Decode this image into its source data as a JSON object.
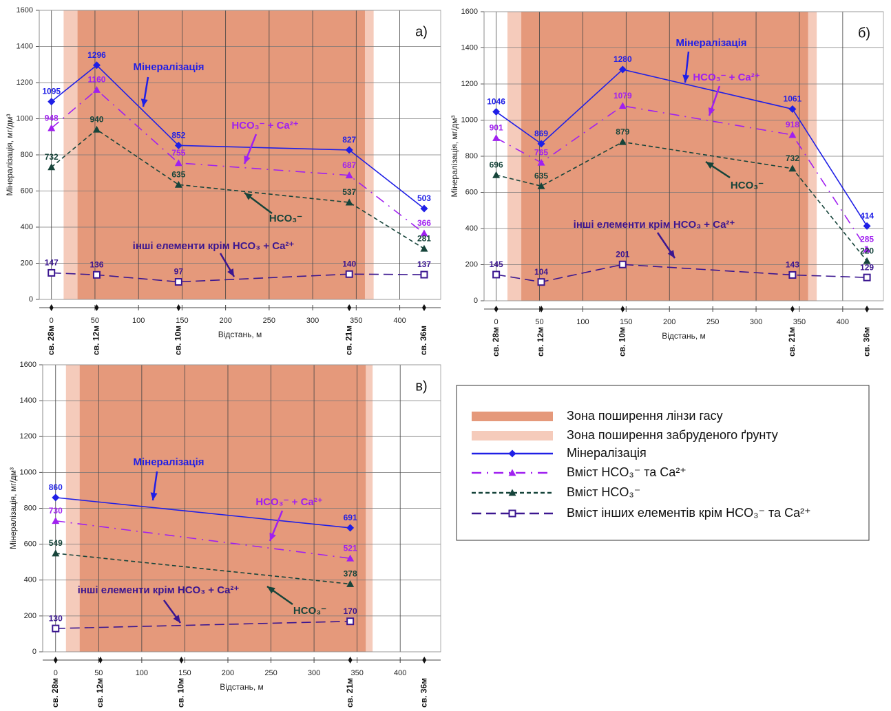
{
  "chart_data": [
    {
      "type": "line",
      "panel_label": "а)",
      "ylabel": "Мінералізація, мг/дм³",
      "xlabel": "Відстань, м",
      "xlim": [
        -14,
        447
      ],
      "ylim": [
        0,
        1600
      ],
      "xticks": [
        0,
        50,
        100,
        150,
        200,
        250,
        300,
        350,
        400
      ],
      "yticks": [
        0,
        200,
        400,
        600,
        800,
        1000,
        1200,
        1400,
        1600
      ],
      "grid": true,
      "zones": [
        {
          "name": "Зона поширення лінзи гасу",
          "color": "#e5997b",
          "range": [
            30,
            360
          ]
        },
        {
          "name": "Зона поширення забруденого ґрунту",
          "color": "#f5cbbb",
          "range": [
            14,
            370
          ]
        }
      ],
      "wells": [
        {
          "x": 0,
          "label": "св. 28м"
        },
        {
          "x": 52,
          "label": "св. 12м"
        },
        {
          "x": 146,
          "label": "св. 10м"
        },
        {
          "x": 342,
          "label": "св. 21м"
        },
        {
          "x": 428,
          "label": "св. 36м"
        }
      ],
      "x": [
        0,
        52,
        146,
        342,
        428
      ],
      "series": [
        {
          "name": "Мінералізація",
          "color": "#1f1fe6",
          "dash": "solid",
          "marker": "diamond",
          "values": [
            1095,
            1296,
            852,
            827,
            503
          ]
        },
        {
          "name": "Вміст HCO₃⁻ та Ca²⁺",
          "color": "#a020f0",
          "dash": "dashdot",
          "marker": "triangle",
          "values": [
            948,
            1160,
            755,
            687,
            366
          ]
        },
        {
          "name": "Вміст HCO₃⁻",
          "color": "#16443a",
          "dash": "dashed",
          "marker": "triangle",
          "values": [
            732,
            940,
            635,
            537,
            281
          ]
        },
        {
          "name": "Вміст інших елементів крім HCO₃⁻ та Ca²⁺",
          "color": "#3b1690",
          "dash": "longdash",
          "marker": "square",
          "values": [
            147,
            136,
            97,
            140,
            137
          ]
        }
      ],
      "annotations": [
        {
          "text": "Мінералізація",
          "color": "#1f1fe6"
        },
        {
          "text": "HCO₃⁻ + Ca²⁺",
          "color": "#a020f0"
        },
        {
          "text": "HCO₃⁻",
          "color": "#16443a"
        },
        {
          "text": "інші елементи крім HCO₃ + Ca²⁺",
          "color": "#3b1690"
        }
      ]
    },
    {
      "type": "line",
      "panel_label": "б)",
      "ylabel": "Мінералізація, мг/дм³",
      "xlabel": "Відстань, м",
      "xlim": [
        -14,
        447
      ],
      "ylim": [
        0,
        1600
      ],
      "xticks": [
        0,
        50,
        100,
        150,
        200,
        250,
        300,
        350,
        400
      ],
      "yticks": [
        0,
        200,
        400,
        600,
        800,
        1000,
        1200,
        1400,
        1600
      ],
      "grid": true,
      "zones": [
        {
          "color": "#e5997b",
          "range": [
            29,
            360
          ]
        },
        {
          "color": "#f5cbbb",
          "range": [
            13,
            370
          ]
        }
      ],
      "wells": [
        {
          "x": 0,
          "label": "св. 28м"
        },
        {
          "x": 52,
          "label": "св. 12м"
        },
        {
          "x": 146,
          "label": "св. 10м"
        },
        {
          "x": 342,
          "label": "св. 21м"
        },
        {
          "x": 428,
          "label": "св. 36м"
        }
      ],
      "x": [
        0,
        52,
        146,
        342,
        428
      ],
      "series": [
        {
          "color": "#1f1fe6",
          "dash": "solid",
          "marker": "diamond",
          "values": [
            1046,
            869,
            1280,
            1061,
            414
          ]
        },
        {
          "color": "#a020f0",
          "dash": "dashdot",
          "marker": "triangle",
          "values": [
            901,
            765,
            1079,
            918,
            285
          ]
        },
        {
          "color": "#16443a",
          "dash": "dashed",
          "marker": "triangle",
          "values": [
            696,
            635,
            879,
            732,
            220
          ]
        },
        {
          "color": "#3b1690",
          "dash": "longdash",
          "marker": "square",
          "values": [
            145,
            104,
            201,
            143,
            129
          ]
        }
      ],
      "annotations": [
        {
          "text": "Мінералізація",
          "color": "#1f1fe6"
        },
        {
          "text": "HCO₃⁻ + Ca²⁺",
          "color": "#a020f0"
        },
        {
          "text": "HCO₃⁻",
          "color": "#16443a"
        },
        {
          "text": "інші елементи крім HCO₃ + Ca²⁺",
          "color": "#3b1690"
        }
      ]
    },
    {
      "type": "line",
      "panel_label": "в)",
      "ylabel": "Мінералізація, мг/дм³",
      "xlabel": "Відстань, м",
      "xlim": [
        -15,
        447
      ],
      "ylim": [
        0,
        1600
      ],
      "xticks": [
        0,
        50,
        100,
        150,
        200,
        250,
        300,
        350,
        400
      ],
      "yticks": [
        0,
        200,
        400,
        600,
        800,
        1000,
        1200,
        1400,
        1600
      ],
      "grid": true,
      "zones": [
        {
          "color": "#e5997b",
          "range": [
            28,
            360
          ]
        },
        {
          "color": "#f5cbbb",
          "range": [
            12,
            368
          ]
        }
      ],
      "wells": [
        {
          "x": 0,
          "label": "св. 28м"
        },
        {
          "x": 52,
          "label": "св. 12м"
        },
        {
          "x": 146,
          "label": "св. 10м"
        },
        {
          "x": 342,
          "label": "св. 21м"
        },
        {
          "x": 428,
          "label": "св. 36м"
        }
      ],
      "x": [
        0,
        342
      ],
      "series": [
        {
          "color": "#1f1fe6",
          "dash": "solid",
          "marker": "diamond",
          "values": [
            860,
            691
          ]
        },
        {
          "color": "#a020f0",
          "dash": "dashdot",
          "marker": "triangle",
          "values": [
            730,
            521
          ]
        },
        {
          "color": "#16443a",
          "dash": "dashed",
          "marker": "triangle",
          "values": [
            549,
            378
          ]
        },
        {
          "color": "#3b1690",
          "dash": "longdash",
          "marker": "square",
          "values": [
            130,
            170
          ]
        }
      ],
      "annotations": [
        {
          "text": "Мінералізація",
          "color": "#1f1fe6"
        },
        {
          "text": "HCO₃⁻ + Ca²⁺",
          "color": "#a020f0"
        },
        {
          "text": "HCO₃⁻",
          "color": "#16443a"
        },
        {
          "text": "інші елементи крім HCO₃ + Ca²⁺",
          "color": "#3b1690"
        }
      ]
    }
  ]
}
